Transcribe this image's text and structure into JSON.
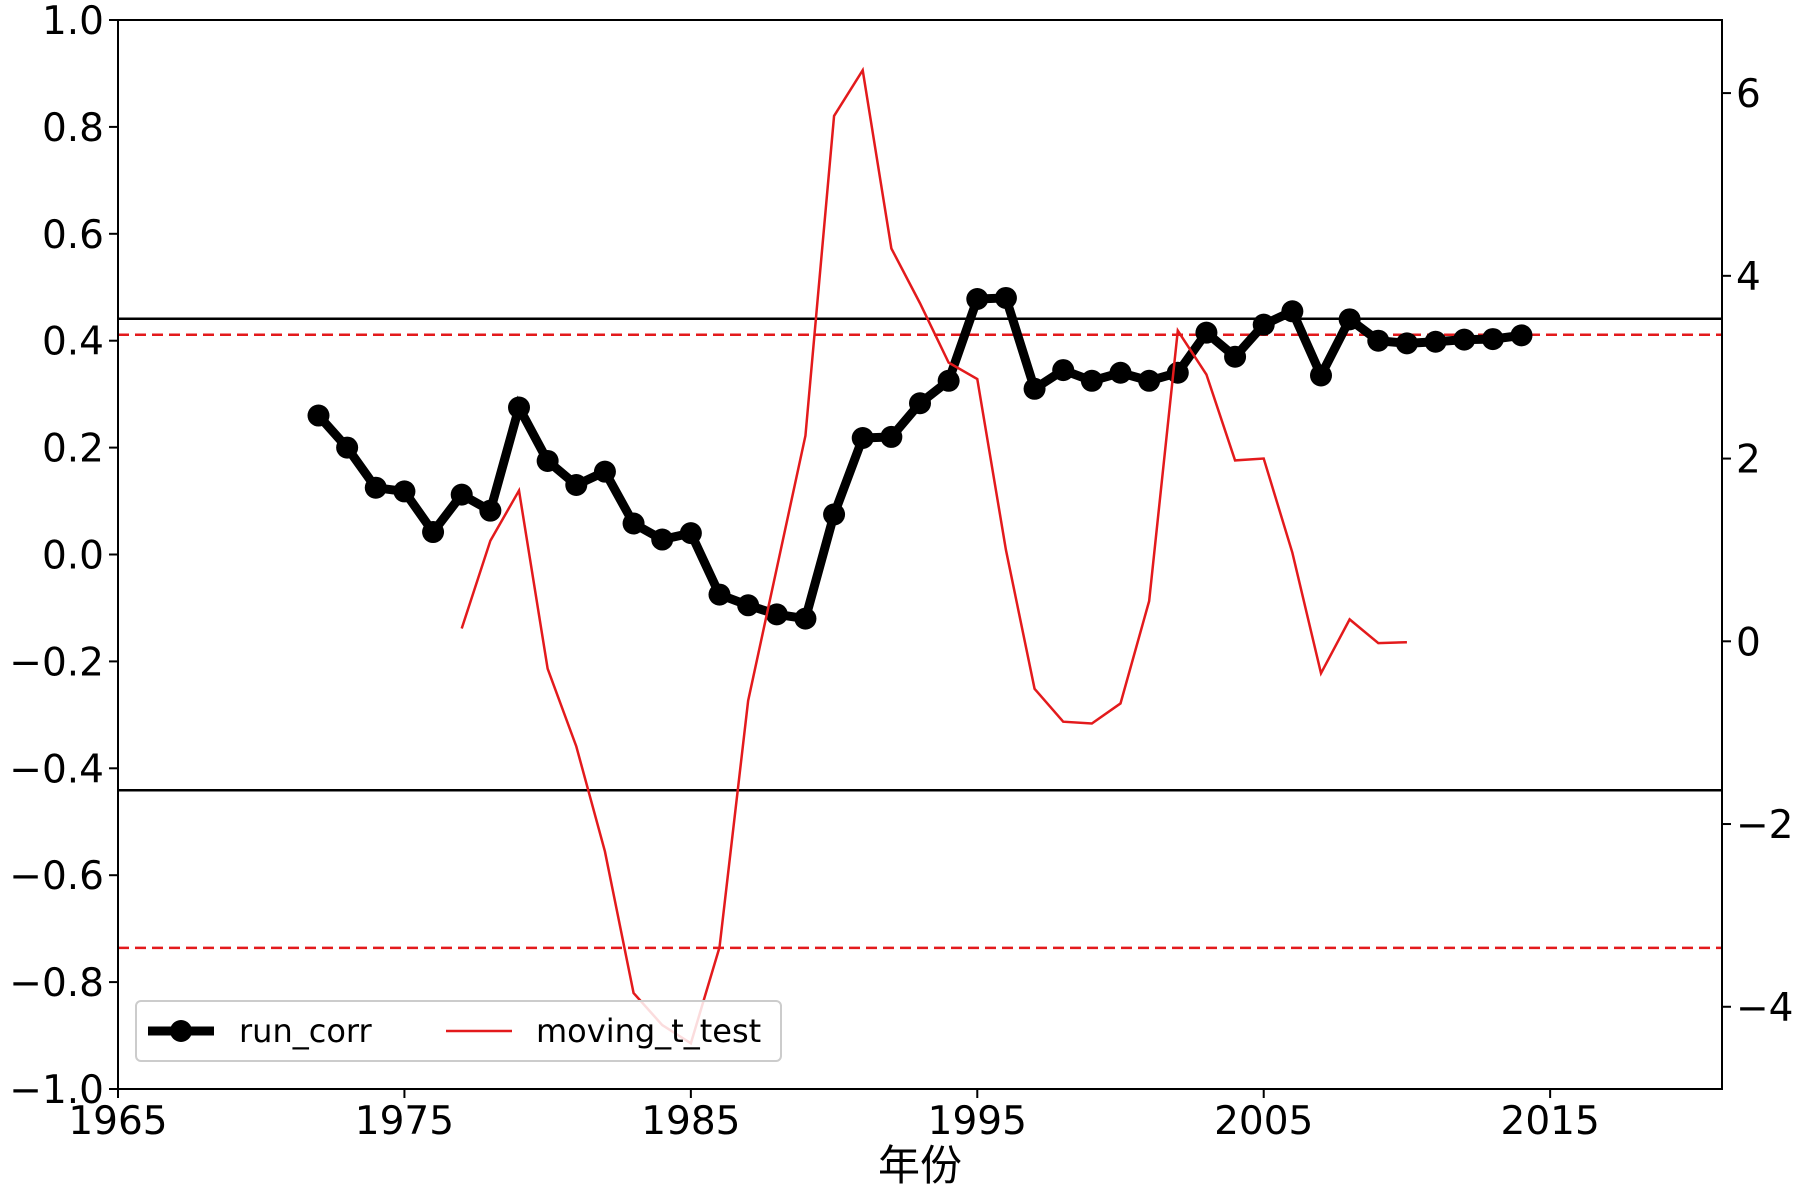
{
  "chart_data": {
    "type": "line",
    "xlabel": "年份",
    "x_ticks": [
      1965,
      1975,
      1985,
      1995,
      2005,
      2015
    ],
    "xlim": [
      1965,
      2021
    ],
    "left_axis": {
      "ylim": [
        -1.0,
        1.0
      ],
      "ticks": [
        -1.0,
        -0.8,
        -0.6,
        -0.4,
        -0.2,
        0.0,
        0.2,
        0.4,
        0.6,
        0.8,
        1.0
      ],
      "tick_labels": [
        "−1.0",
        "−0.8",
        "−0.6",
        "−0.4",
        "−0.2",
        "0.0",
        "0.2",
        "0.4",
        "0.6",
        "0.8",
        "1.0"
      ]
    },
    "right_axis": {
      "ylim": [
        -4.9,
        6.8
      ],
      "ticks": [
        -4,
        -2,
        0,
        2,
        4,
        6
      ],
      "tick_labels": [
        "−4",
        "−2",
        "0",
        "2",
        "4",
        "6"
      ]
    },
    "series": [
      {
        "name": "run_corr",
        "axis": "left",
        "color": "#000000",
        "style": "solid-with-markers",
        "x": [
          1972,
          1973,
          1974,
          1975,
          1976,
          1977,
          1978,
          1979,
          1980,
          1981,
          1982,
          1983,
          1984,
          1985,
          1986,
          1987,
          1988,
          1989,
          1990,
          1991,
          1992,
          1993,
          1994,
          1995,
          1996,
          1997,
          1998,
          1999,
          2000,
          2001,
          2002,
          2003,
          2004,
          2005,
          2006,
          2007,
          2008,
          2009,
          2010,
          2011,
          2012,
          2013,
          2014
        ],
        "values": [
          0.26,
          0.2,
          0.125,
          0.118,
          0.042,
          0.112,
          0.082,
          0.275,
          0.175,
          0.13,
          0.155,
          0.058,
          0.028,
          0.04,
          -0.075,
          -0.095,
          -0.112,
          -0.12,
          0.075,
          0.218,
          0.22,
          0.283,
          0.325,
          0.478,
          0.48,
          0.31,
          0.345,
          0.325,
          0.34,
          0.325,
          0.34,
          0.415,
          0.37,
          0.43,
          0.455,
          0.335,
          0.44,
          0.4,
          0.395,
          0.398,
          0.402,
          0.403,
          0.41
        ]
      },
      {
        "name": "moving_t_test",
        "axis": "right",
        "color": "#e31a1c",
        "style": "solid",
        "x": [
          1977,
          1978,
          1979,
          1980,
          1981,
          1982,
          1983,
          1984,
          1985,
          1986,
          1987,
          1988,
          1989,
          1990,
          1991,
          1992,
          1993,
          1994,
          1995,
          1996,
          1997,
          1998,
          1999,
          2000,
          2001,
          2002,
          2003,
          2004,
          2005,
          2006,
          2007,
          2008,
          2009,
          2010
        ],
        "values": [
          0.14,
          1.1,
          1.65,
          -0.3,
          -1.15,
          -2.3,
          -3.85,
          -4.2,
          -4.4,
          -3.35,
          -0.65,
          0.8,
          2.25,
          5.75,
          6.25,
          4.3,
          3.7,
          3.05,
          2.87,
          1.0,
          -0.52,
          -0.88,
          -0.9,
          -0.68,
          0.44,
          3.4,
          2.92,
          1.98,
          2.0,
          0.97,
          -0.35,
          0.24,
          -0.02,
          -0.01
        ]
      }
    ],
    "reference_lines": [
      {
        "axis": "left",
        "value": 0.441,
        "style": "solid",
        "color": "#000000"
      },
      {
        "axis": "left",
        "value": -0.441,
        "style": "solid",
        "color": "#000000"
      },
      {
        "axis": "right",
        "value": 3.355,
        "style": "dashed",
        "color": "#e31a1c"
      },
      {
        "axis": "right",
        "value": -3.355,
        "style": "dashed",
        "color": "#e31a1c"
      }
    ],
    "legend": {
      "placement": "lower-left",
      "entries": [
        "run_corr",
        "moving_t_test"
      ]
    },
    "grid": false
  }
}
